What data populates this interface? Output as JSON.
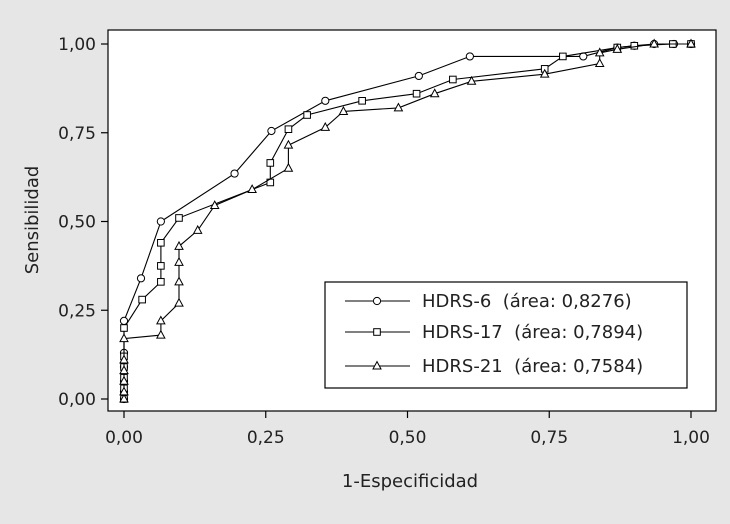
{
  "chart_data": {
    "type": "line",
    "title": "",
    "xlabel": "1-Especificidad",
    "ylabel": "Sensibilidad",
    "xlim": [
      0,
      1
    ],
    "ylim": [
      0,
      1
    ],
    "x_ticks": [
      "0,00",
      "0,25",
      "0,50",
      "0,75",
      "1,00"
    ],
    "y_ticks": [
      "0,00",
      "0,25",
      "0,50",
      "0,75",
      "1,00"
    ],
    "grid": false,
    "legend_position": "bottom-right",
    "series": [
      {
        "name": "HDRS-6  (área: 0,8276)",
        "marker": "circle",
        "points": [
          [
            0,
            0
          ],
          [
            0,
            0.02
          ],
          [
            0,
            0.05
          ],
          [
            0,
            0.09
          ],
          [
            0,
            0.13
          ],
          [
            0,
            0.22
          ],
          [
            0.03,
            0.34
          ],
          [
            0.065,
            0.5
          ],
          [
            0.195,
            0.635
          ],
          [
            0.26,
            0.755
          ],
          [
            0.355,
            0.84
          ],
          [
            0.52,
            0.91
          ],
          [
            0.61,
            0.965
          ],
          [
            0.81,
            0.965
          ],
          [
            0.87,
            0.99
          ],
          [
            0.9,
            0.995
          ],
          [
            0.935,
            1.0
          ],
          [
            0.97,
            1.0
          ],
          [
            1.0,
            1.0
          ]
        ]
      },
      {
        "name": "HDRS-17  (área: 0,7894)",
        "marker": "square",
        "points": [
          [
            0,
            0
          ],
          [
            0,
            0.03
          ],
          [
            0,
            0.06
          ],
          [
            0,
            0.09
          ],
          [
            0,
            0.12
          ],
          [
            0,
            0.2
          ],
          [
            0.032,
            0.28
          ],
          [
            0.065,
            0.33
          ],
          [
            0.065,
            0.375
          ],
          [
            0.065,
            0.44
          ],
          [
            0.097,
            0.51
          ],
          [
            0.258,
            0.61
          ],
          [
            0.258,
            0.665
          ],
          [
            0.29,
            0.76
          ],
          [
            0.323,
            0.8
          ],
          [
            0.42,
            0.84
          ],
          [
            0.516,
            0.86
          ],
          [
            0.58,
            0.9
          ],
          [
            0.742,
            0.93
          ],
          [
            0.774,
            0.965
          ],
          [
            0.87,
            0.99
          ],
          [
            0.9,
            0.995
          ],
          [
            0.968,
            1.0
          ],
          [
            1.0,
            1.0
          ]
        ]
      },
      {
        "name": "HDRS-21  (área: 0,7584)",
        "marker": "triangle",
        "points": [
          [
            0,
            0
          ],
          [
            0,
            0.02
          ],
          [
            0,
            0.05
          ],
          [
            0,
            0.08
          ],
          [
            0,
            0.11
          ],
          [
            0,
            0.17
          ],
          [
            0.065,
            0.18
          ],
          [
            0.065,
            0.22
          ],
          [
            0.097,
            0.27
          ],
          [
            0.097,
            0.33
          ],
          [
            0.097,
            0.385
          ],
          [
            0.097,
            0.43
          ],
          [
            0.13,
            0.475
          ],
          [
            0.16,
            0.545
          ],
          [
            0.226,
            0.59
          ],
          [
            0.29,
            0.65
          ],
          [
            0.29,
            0.715
          ],
          [
            0.355,
            0.765
          ],
          [
            0.387,
            0.81
          ],
          [
            0.484,
            0.82
          ],
          [
            0.548,
            0.86
          ],
          [
            0.613,
            0.895
          ],
          [
            0.742,
            0.915
          ],
          [
            0.839,
            0.945
          ],
          [
            0.839,
            0.975
          ],
          [
            0.87,
            0.985
          ],
          [
            0.935,
            1.0
          ],
          [
            1.0,
            1.0
          ]
        ]
      }
    ]
  }
}
